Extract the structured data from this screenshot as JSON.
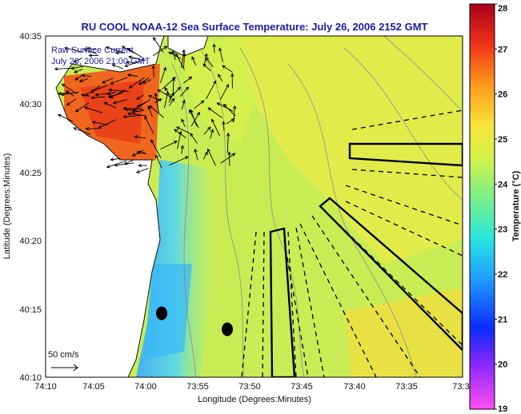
{
  "chart_data": {
    "type": "heatmap",
    "title": "RU COOL  NOAA-12  Sea Surface Temperature:  July 26, 2006 2152 GMT",
    "xlabel": "Longitude (Degrees:Minutes)",
    "ylabel": "Latitude (Degrees:Minutes)",
    "x_ticks": [
      "74:10",
      "74:05",
      "74:00",
      "73:55",
      "73:50",
      "73:45",
      "73:40",
      "73:35",
      "73:3"
    ],
    "y_ticks": [
      "40:10",
      "40:15",
      "40:20",
      "40:25",
      "40:30",
      "40:35"
    ],
    "xlim_minutes_west": [
      10,
      -30
    ],
    "ylim_minutes_north": [
      10,
      35
    ],
    "annotations": [
      "Raw Surface Current",
      "July 26, 2006 21:00 GMT"
    ],
    "scale_label": "50 cm/s",
    "colorbar": {
      "label": "Temperature (°C)",
      "range": [
        19,
        28
      ],
      "ticks": [
        "19",
        "20",
        "21",
        "22",
        "23",
        "24",
        "25",
        "26",
        "27",
        "28"
      ]
    },
    "temperature_field": {
      "coastal_min_c": 21.5,
      "offshore_typical_c": 24,
      "offshore_max_c": 25.5,
      "land_color": "#ffffff"
    },
    "sampling_lines": {
      "dashed_count": 12,
      "box_outlines": 3
    },
    "markers": 2,
    "current_vectors": "present"
  }
}
